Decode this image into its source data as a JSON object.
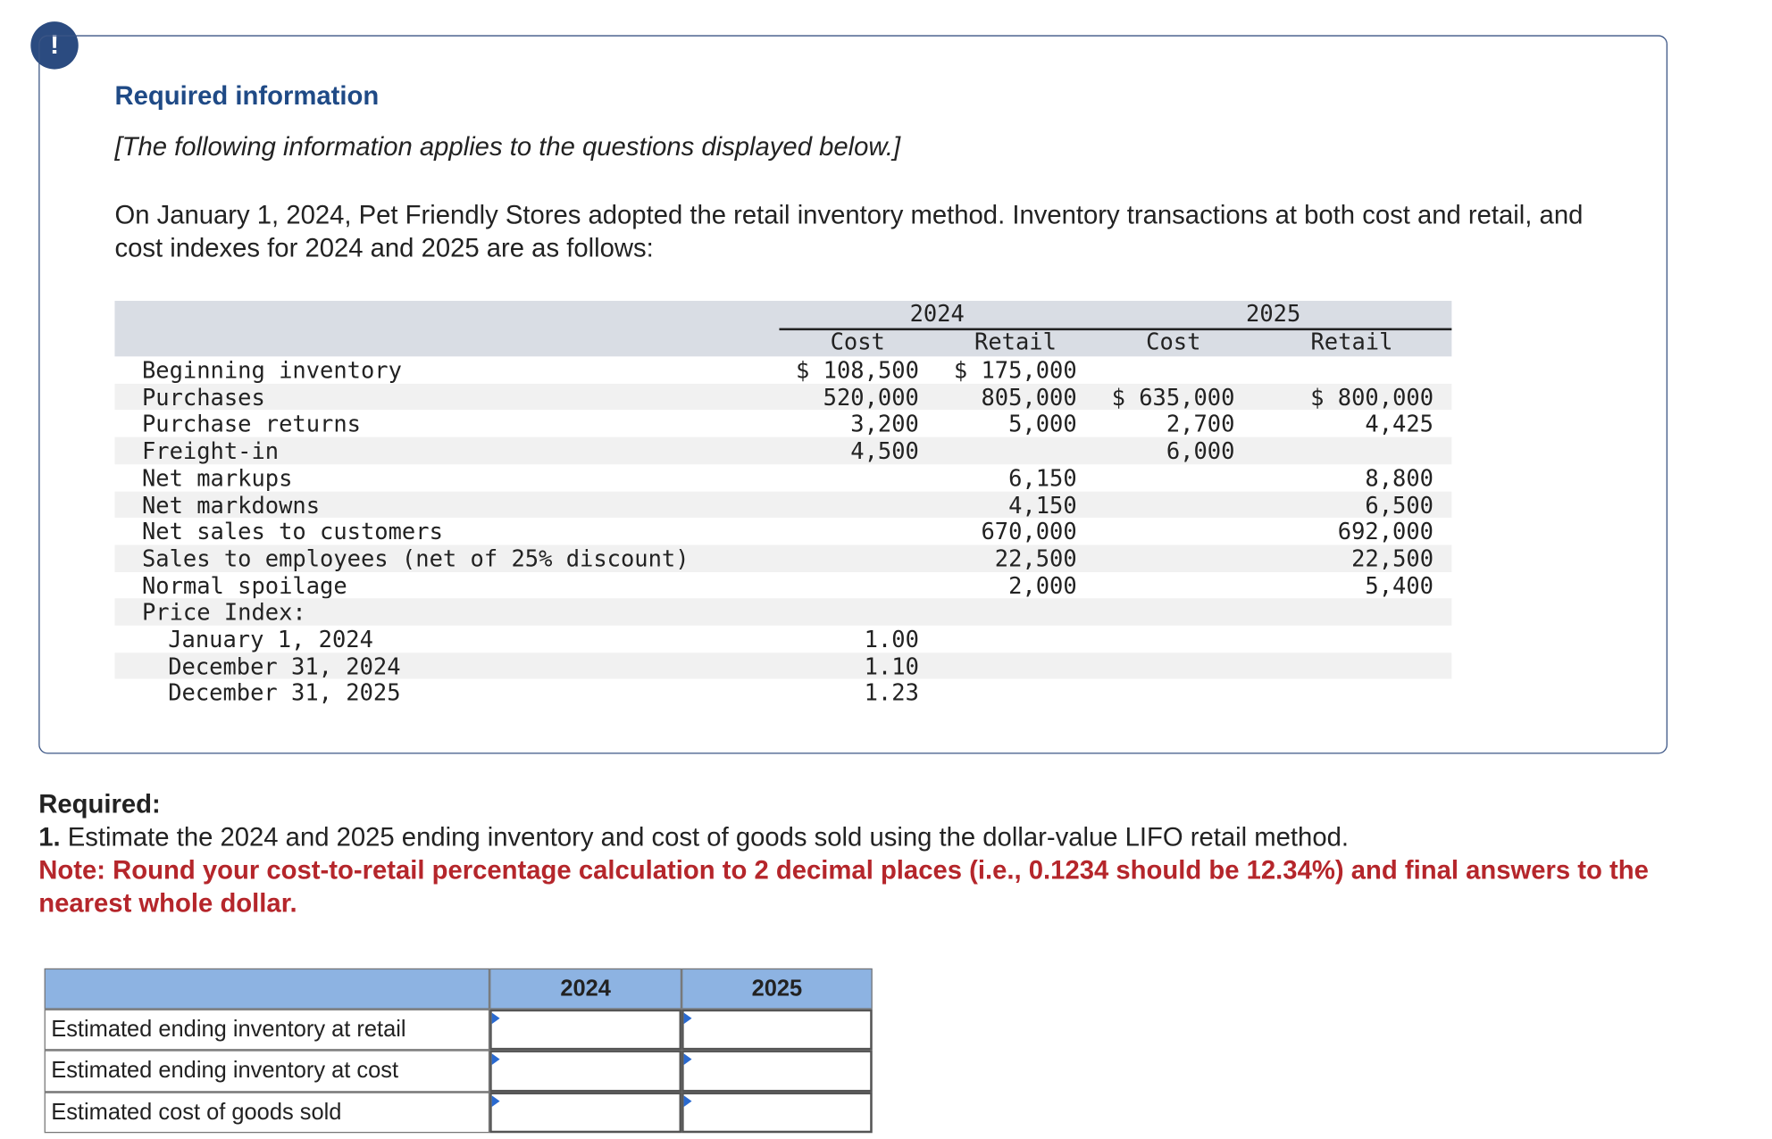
{
  "info_box": {
    "title": "Required information",
    "subtitle": "[The following information applies to the questions displayed below.]",
    "intro": "On January 1, 2024, Pet Friendly Stores adopted the retail inventory method. Inventory transactions at both cost and retail, and cost indexes for 2024 and 2025 are as follows:"
  },
  "data_table": {
    "years": [
      "2024",
      "2025"
    ],
    "columns": [
      "Cost",
      "Retail",
      "Cost",
      "Retail"
    ],
    "rows": [
      {
        "label": "Beginning inventory",
        "cells": [
          "$ 108,500",
          "$ 175,000",
          null,
          null
        ]
      },
      {
        "label": "Purchases",
        "cells": [
          "520,000",
          "805,000",
          "$ 635,000",
          "$ 800,000"
        ]
      },
      {
        "label": "Purchase returns",
        "cells": [
          "3,200",
          "5,000",
          "2,700",
          "4,425"
        ]
      },
      {
        "label": "Freight-in",
        "cells": [
          "4,500",
          null,
          "6,000",
          null
        ]
      },
      {
        "label": "Net markups",
        "cells": [
          null,
          "6,150",
          null,
          "8,800"
        ]
      },
      {
        "label": "Net markdowns",
        "cells": [
          null,
          "4,150",
          null,
          "6,500"
        ]
      },
      {
        "label": "Net sales to customers",
        "cells": [
          null,
          "670,000",
          null,
          "692,000"
        ]
      },
      {
        "label": "Sales to employees (net of 25% discount)",
        "cells": [
          null,
          "22,500",
          null,
          "22,500"
        ]
      },
      {
        "label": "Normal spoilage",
        "cells": [
          null,
          "2,000",
          null,
          "5,400"
        ]
      },
      {
        "label": "Price Index:",
        "cells": [
          null,
          null,
          null,
          null
        ],
        "subrows": [
          {
            "label": "January 1, 2024",
            "cells": [
              "1.00",
              null,
              null,
              null
            ]
          },
          {
            "label": "December 31, 2024",
            "cells": [
              "1.10",
              null,
              null,
              null
            ]
          },
          {
            "label": "December 31, 2025",
            "cells": [
              "1.23",
              null,
              null,
              null
            ]
          }
        ]
      }
    ]
  },
  "required": {
    "heading": "Required:",
    "number": "1.",
    "text": "Estimate the 2024 and 2025 ending inventory and cost of goods sold using the dollar-value LIFO retail method.",
    "note": "Note: Round your cost-to-retail percentage calculation to 2 decimal places (i.e., 0.1234 should be 12.34%) and final answers to the nearest whole dollar."
  },
  "answer_table": {
    "headers": [
      "2024",
      "2025"
    ],
    "rows": [
      "Estimated ending inventory at retail",
      "Estimated ending inventory at cost",
      "Estimated cost of goods sold"
    ]
  }
}
